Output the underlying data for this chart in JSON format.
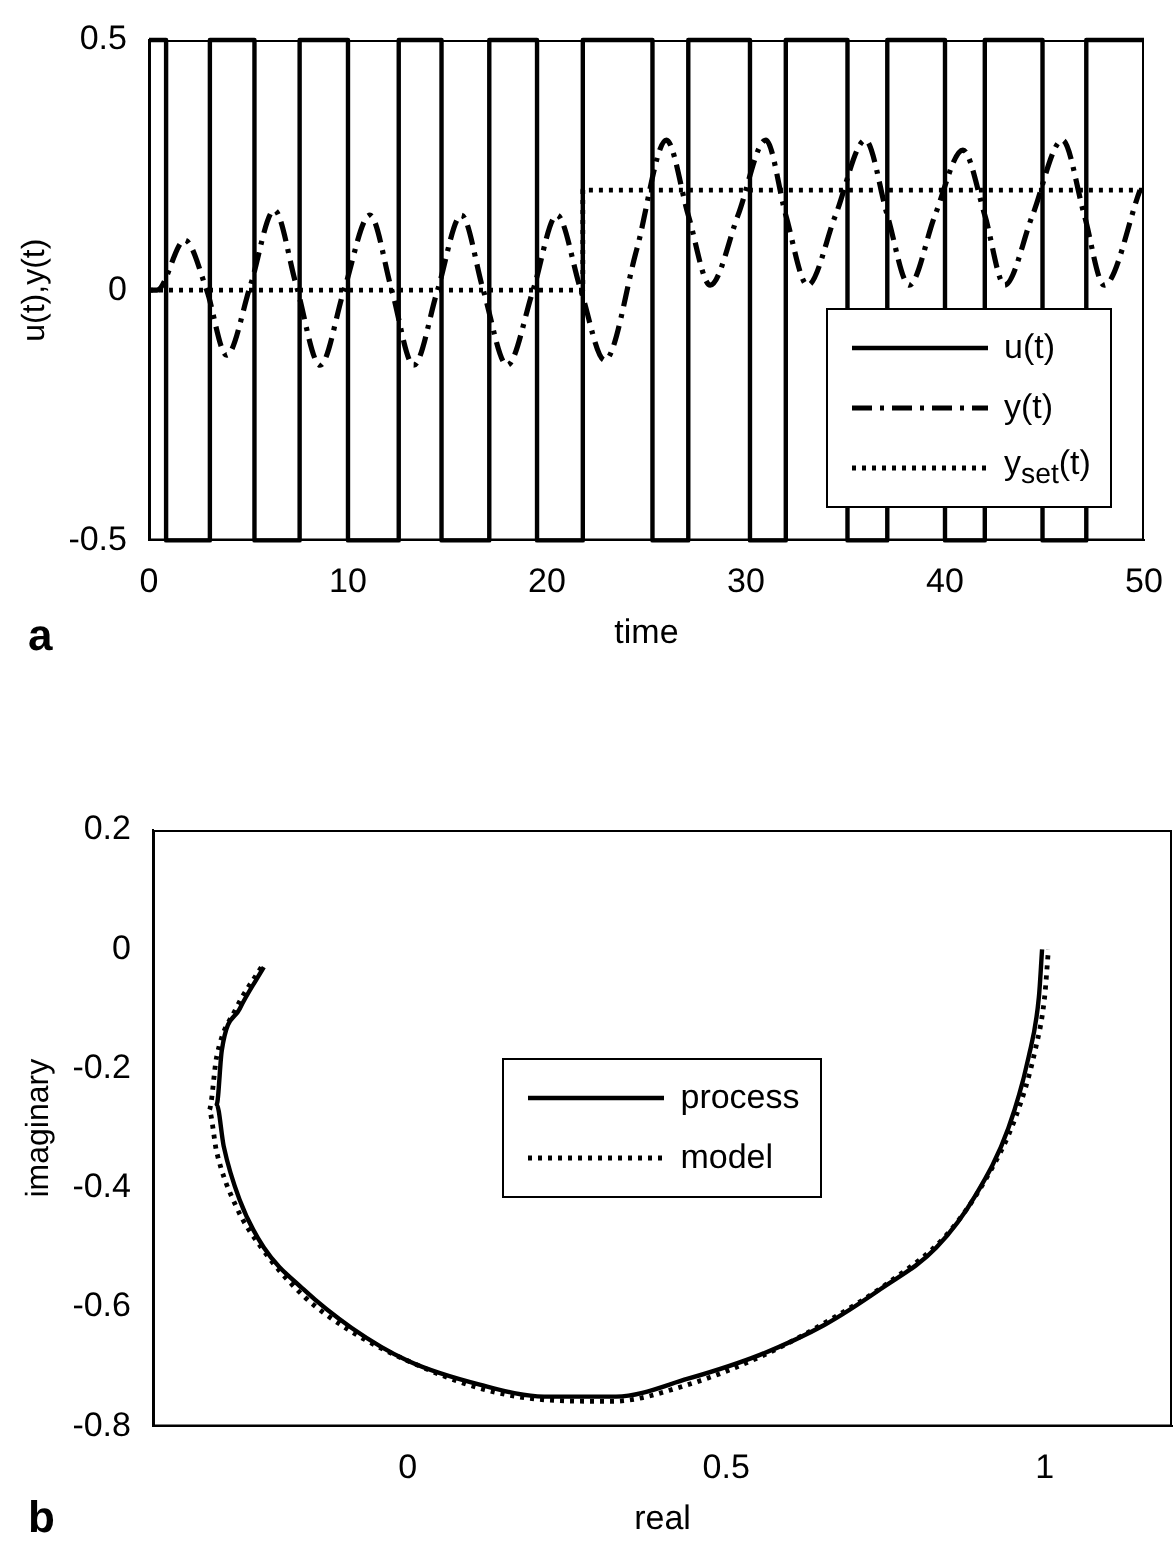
{
  "chart_data": [
    {
      "type": "line",
      "xlabel": "time",
      "ylabel": "u(t),y(t)",
      "annotations": [
        "a"
      ],
      "xlim": [
        0,
        50
      ],
      "xticks": [
        0,
        10,
        20,
        30,
        40,
        50
      ],
      "ylim": [
        -0.5,
        0.5
      ],
      "yticks": [
        -0.5,
        0,
        0.5
      ],
      "grid": false,
      "legend": "bottom right",
      "marker": "none",
      "series": [
        {
          "name": "u(t)",
          "type": "step",
          "color": "#000000",
          "line_style": "solid",
          "x": [
            0,
            0.86,
            3.06,
            5.3,
            7.57,
            10.0,
            12.55,
            14.7,
            17.1,
            19.5,
            21.8,
            25.3,
            27.1,
            30.2,
            32.0,
            35.1,
            37.1,
            40.0,
            42.0,
            44.9,
            47.1,
            50
          ],
          "values": [
            0.5,
            -0.5,
            0.5,
            -0.5,
            0.5,
            -0.5,
            0.5,
            -0.5,
            0.5,
            -0.5,
            0.5,
            -0.5,
            0.5,
            -0.5,
            0.5,
            -0.5,
            0.5,
            -0.5,
            0.5,
            -0.5,
            0.5,
            0.5
          ]
        },
        {
          "name": "y(t)",
          "type": "line",
          "color": "#000000",
          "line_style": "dashed",
          "x": [
            0,
            0.4,
            1.8,
            2.9,
            3.9,
            5.1,
            6.3,
            7.4,
            8.6,
            9.8,
            11.1,
            12.2,
            13.3,
            14.5,
            15.7,
            16.8,
            18.0,
            19.3,
            20.5,
            21.7,
            22.9,
            24.5,
            26.0,
            27.1,
            28.2,
            29.6,
            31.0,
            32.0,
            33.1,
            34.5,
            36.0,
            37.1,
            38.2,
            39.5,
            40.9,
            42.0,
            43.0,
            44.4,
            45.9,
            47.0,
            48.0,
            49.8
          ],
          "values": [
            0,
            0.0,
            0.1,
            0,
            -0.13,
            0.01,
            0.16,
            0.01,
            -0.15,
            0,
            0.15,
            0,
            -0.15,
            0,
            0.15,
            0,
            -0.15,
            0,
            0.15,
            0,
            -0.14,
            0.08,
            0.3,
            0.15,
            0.01,
            0.15,
            0.3,
            0.15,
            0.01,
            0.15,
            0.3,
            0.15,
            0.01,
            0.15,
            0.28,
            0.15,
            0.01,
            0.15,
            0.3,
            0.15,
            0.01,
            0.2
          ]
        },
        {
          "name": "y$_{set}$(t)",
          "type": "step",
          "color": "#000000",
          "line_style": "dotted",
          "x": [
            0,
            21.8,
            50
          ],
          "values": [
            0,
            0.2,
            0.2
          ]
        }
      ]
    },
    {
      "type": "line",
      "xlabel": "real",
      "ylabel": "imaginary",
      "annotations": [
        "b"
      ],
      "xlim": [
        -0.4,
        1.2
      ],
      "xticks": [
        0,
        0.5,
        1
      ],
      "ylim": [
        -0.8,
        0.2
      ],
      "yticks": [
        -0.8,
        -0.6,
        -0.4,
        -0.2,
        0,
        0.2
      ],
      "grid": false,
      "legend": "center",
      "marker": "none",
      "series": [
        {
          "name": "process",
          "type": "line",
          "color": "#000000",
          "line_style": "solid",
          "x": [
            -0.226,
            -0.264,
            -0.292,
            -0.3,
            -0.289,
            -0.264,
            -0.226,
            -0.164,
            -0.088,
            0,
            0.113,
            0.214,
            0.327,
            0.44,
            0.553,
            0.654,
            0.742,
            0.83,
            0.893,
            0.943,
            0.975,
            0.991,
            0.996
          ],
          "values": [
            -0.03,
            -0.1,
            -0.17,
            -0.26,
            -0.33,
            -0.42,
            -0.5,
            -0.57,
            -0.635,
            -0.69,
            -0.73,
            -0.75,
            -0.75,
            -0.72,
            -0.68,
            -0.63,
            -0.57,
            -0.5,
            -0.41,
            -0.3,
            -0.18,
            -0.08,
            0
          ]
        },
        {
          "name": "model",
          "type": "line",
          "color": "#000000",
          "line_style": "dotted",
          "x": [
            -0.23,
            -0.27,
            -0.3,
            -0.312,
            -0.3,
            -0.27,
            -0.23,
            -0.165,
            -0.09,
            0,
            0.11,
            0.21,
            0.32,
            0.44,
            0.56,
            0.665,
            0.76,
            0.845,
            0.905,
            0.955,
            0.985,
            1.0,
            1.006
          ],
          "values": [
            -0.03,
            -0.1,
            -0.18,
            -0.27,
            -0.34,
            -0.43,
            -0.5,
            -0.58,
            -0.64,
            -0.69,
            -0.735,
            -0.755,
            -0.758,
            -0.73,
            -0.68,
            -0.62,
            -0.555,
            -0.48,
            -0.39,
            -0.28,
            -0.17,
            -0.08,
            0
          ]
        }
      ]
    }
  ]
}
